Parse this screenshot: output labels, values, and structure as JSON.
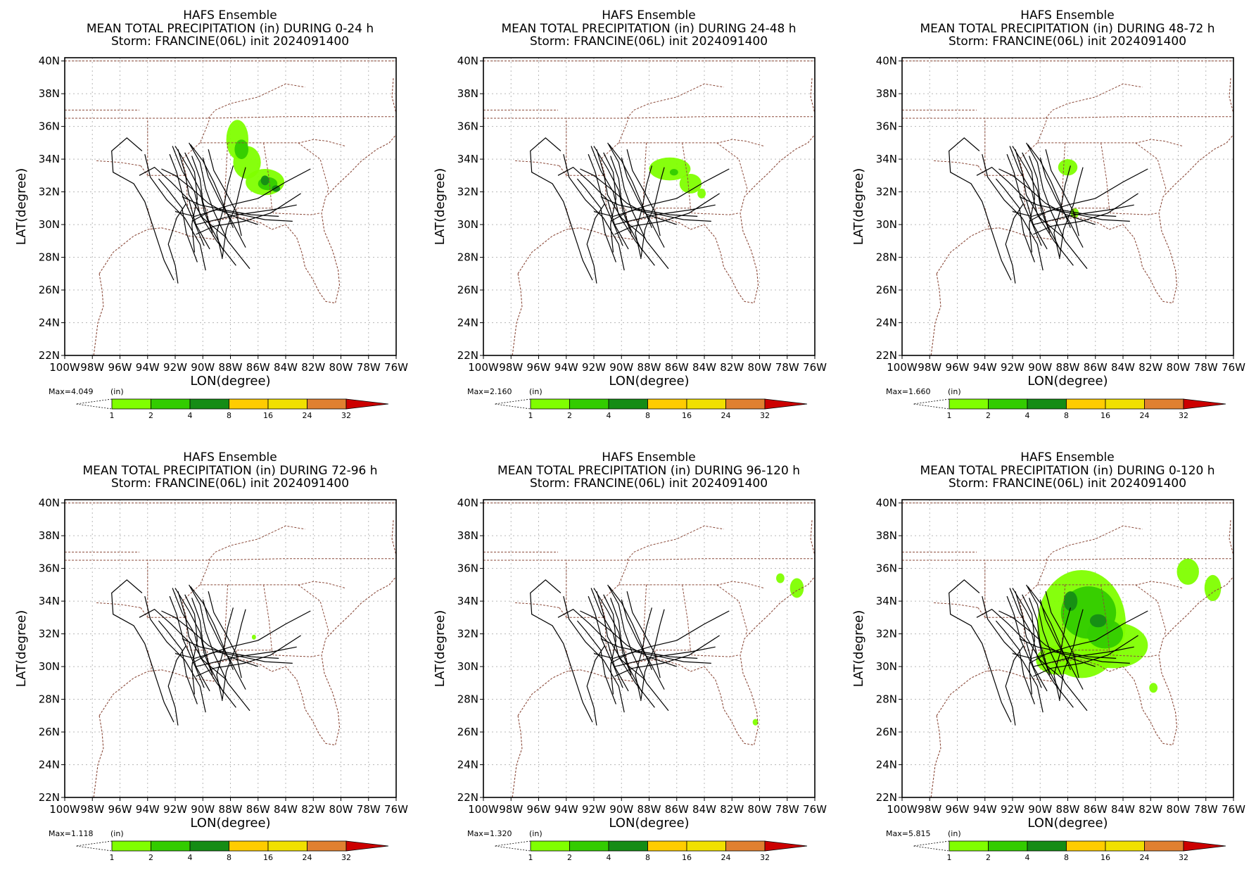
{
  "figure": {
    "colorbar_unit": "(in)",
    "colorbar_levels": [
      "1",
      "2",
      "4",
      "8",
      "16",
      "24",
      "32"
    ],
    "colorbar_colors": [
      "#80ff00",
      "#33cc00",
      "#158c15",
      "#ffcc00",
      "#f0e000",
      "#e08030",
      "#cc0000"
    ],
    "lat_ticks": [
      "40N",
      "38N",
      "36N",
      "34N",
      "32N",
      "30N",
      "28N",
      "26N",
      "24N",
      "22N"
    ],
    "lon_ticks": [
      "100W",
      "98W",
      "96W",
      "94W",
      "92W",
      "90W",
      "88W",
      "86W",
      "84W",
      "82W",
      "80W",
      "78W",
      "76W"
    ],
    "x_axis_label": "LON(degree)",
    "y_axis_label": "LAT(degree)",
    "map_border_color": "#8b4a3a",
    "track_color": "#000000"
  },
  "panels": [
    {
      "line1": "HAFS Ensemble",
      "line2": "MEAN TOTAL PRECIPITATION (in) DURING  0-24 h",
      "line3": "Storm: FRANCINE(06L) init 2024091400",
      "max_label": "Max=4.049",
      "rain": [
        {
          "lon": -87.5,
          "lat": 35.2,
          "rx": 0.8,
          "ry": 1.2,
          "level": "1"
        },
        {
          "lon": -86.8,
          "lat": 33.8,
          "rx": 1.0,
          "ry": 1.0,
          "level": "1"
        },
        {
          "lon": -85.5,
          "lat": 32.6,
          "rx": 1.4,
          "ry": 0.8,
          "level": "1"
        },
        {
          "lon": -87.2,
          "lat": 34.6,
          "rx": 0.5,
          "ry": 0.6,
          "level": "2"
        },
        {
          "lon": -85.3,
          "lat": 32.5,
          "rx": 0.7,
          "ry": 0.4,
          "level": "2"
        },
        {
          "lon": -84.7,
          "lat": 32.2,
          "rx": 0.3,
          "ry": 0.2,
          "level": "4"
        },
        {
          "lon": -85.5,
          "lat": 32.7,
          "rx": 0.3,
          "ry": 0.3,
          "level": "4"
        }
      ]
    },
    {
      "line1": "HAFS Ensemble",
      "line2": "MEAN TOTAL PRECIPITATION (in) DURING 24-48 h",
      "line3": "Storm: FRANCINE(06L) init 2024091400",
      "max_label": "Max=2.160",
      "rain": [
        {
          "lon": -86.5,
          "lat": 33.4,
          "rx": 1.5,
          "ry": 0.7,
          "level": "1"
        },
        {
          "lon": -85.0,
          "lat": 32.5,
          "rx": 0.8,
          "ry": 0.6,
          "level": "1"
        },
        {
          "lon": -84.2,
          "lat": 31.9,
          "rx": 0.3,
          "ry": 0.3,
          "level": "1"
        },
        {
          "lon": -86.2,
          "lat": 33.2,
          "rx": 0.3,
          "ry": 0.2,
          "level": "2"
        }
      ]
    },
    {
      "line1": "HAFS Ensemble",
      "line2": "MEAN TOTAL PRECIPITATION (in) DURING 48-72 h",
      "line3": "Storm: FRANCINE(06L) init 2024091400",
      "max_label": "Max=1.660",
      "rain": [
        {
          "lon": -88.0,
          "lat": 33.5,
          "rx": 0.7,
          "ry": 0.5,
          "level": "1"
        },
        {
          "lon": -87.5,
          "lat": 30.7,
          "rx": 0.3,
          "ry": 0.3,
          "level": "1"
        }
      ]
    },
    {
      "line1": "HAFS Ensemble",
      "line2": "MEAN TOTAL PRECIPITATION (in) DURING 72-96 h",
      "line3": "Storm: FRANCINE(06L) init 2024091400",
      "max_label": "Max=1.118",
      "rain": [
        {
          "lon": -86.3,
          "lat": 31.8,
          "rx": 0.15,
          "ry": 0.15,
          "level": "1"
        }
      ]
    },
    {
      "line1": "HAFS Ensemble",
      "line2": "MEAN TOTAL PRECIPITATION (in) DURING 96-120 h",
      "line3": "Storm: FRANCINE(06L) init 2024091400",
      "max_label": "Max=1.320",
      "rain": [
        {
          "lon": -78.5,
          "lat": 35.4,
          "rx": 0.3,
          "ry": 0.3,
          "level": "1"
        },
        {
          "lon": -77.3,
          "lat": 34.8,
          "rx": 0.5,
          "ry": 0.6,
          "level": "1"
        },
        {
          "lon": -80.3,
          "lat": 26.6,
          "rx": 0.2,
          "ry": 0.2,
          "level": "1"
        }
      ]
    },
    {
      "line1": "HAFS Ensemble",
      "line2": "MEAN TOTAL PRECIPITATION (in) DURING 0-120 h",
      "line3": "Storm: FRANCINE(06L) init 2024091400",
      "max_label": "Max=5.815",
      "rain": [
        {
          "lon": -87.0,
          "lat": 32.6,
          "rx": 3.2,
          "ry": 3.3,
          "level": "1"
        },
        {
          "lon": -84.7,
          "lat": 31.3,
          "rx": 2.5,
          "ry": 1.4,
          "level": "1"
        },
        {
          "lon": -88.7,
          "lat": 30.4,
          "rx": 1.6,
          "ry": 0.9,
          "level": "1"
        },
        {
          "lon": -79.3,
          "lat": 35.8,
          "rx": 0.8,
          "ry": 0.8,
          "level": "1"
        },
        {
          "lon": -77.5,
          "lat": 34.8,
          "rx": 0.6,
          "ry": 0.8,
          "level": "1"
        },
        {
          "lon": -81.8,
          "lat": 28.7,
          "rx": 0.3,
          "ry": 0.3,
          "level": "1"
        },
        {
          "lon": -86.5,
          "lat": 33.3,
          "rx": 2.0,
          "ry": 1.6,
          "level": "2"
        },
        {
          "lon": -85.3,
          "lat": 32.0,
          "rx": 1.3,
          "ry": 0.9,
          "level": "2"
        },
        {
          "lon": -87.8,
          "lat": 34.0,
          "rx": 0.5,
          "ry": 0.6,
          "level": "4"
        },
        {
          "lon": -85.8,
          "lat": 32.8,
          "rx": 0.6,
          "ry": 0.4,
          "level": "4"
        }
      ]
    }
  ]
}
